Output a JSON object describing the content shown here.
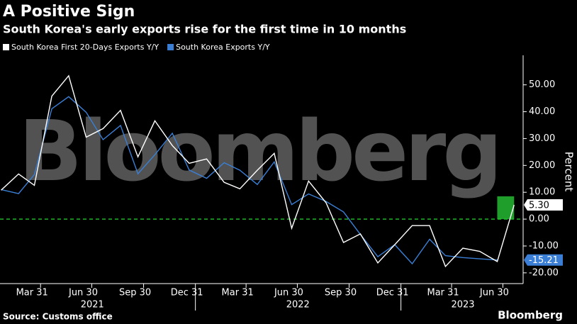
{
  "chart_data": {
    "type": "line",
    "title": "A Positive Sign",
    "subtitle": "South Korea's early exports rise for the first time in 10 months",
    "watermark": "Bloomberg",
    "y_label": "Percent",
    "source": "Source: Customs office",
    "brand": "Bloomberg",
    "x": [
      "2021-01",
      "2021-02",
      "2021-03",
      "2021-04",
      "2021-05",
      "2021-06",
      "2021-07",
      "2021-08",
      "2021-09",
      "2021-10",
      "2021-11",
      "2021-12",
      "2022-01",
      "2022-02",
      "2022-03",
      "2022-04",
      "2022-05",
      "2022-06",
      "2022-07",
      "2022-08",
      "2022-09",
      "2022-10",
      "2022-11",
      "2022-12",
      "2023-01",
      "2023-02",
      "2023-03",
      "2023-04",
      "2023-05",
      "2023-06",
      "2023-07"
    ],
    "series": [
      {
        "name": "South Korea First 20-Days Exports Y/Y",
        "color": "#ffffff",
        "values": [
          10.8,
          16.8,
          12.6,
          45.8,
          53.4,
          30.5,
          33.7,
          40.5,
          23.2,
          36.6,
          27.4,
          20.8,
          22.4,
          13.7,
          11.3,
          18.2,
          24.5,
          -3.4,
          14.2,
          6.1,
          -8.7,
          -5.5,
          -16.3,
          -9.5,
          -2.4,
          -2.4,
          -17.6,
          -10.8,
          -12.0,
          -15.8,
          5.3
        ],
        "value_labels": [
          null,
          null,
          null,
          null,
          null,
          null,
          null,
          null,
          null,
          null,
          null,
          null,
          null,
          null,
          null,
          null,
          null,
          null,
          null,
          null,
          null,
          null,
          null,
          null,
          null,
          null,
          null,
          null,
          null,
          null,
          "5.30"
        ]
      },
      {
        "name": "South Korea Exports Y/Y",
        "color": "#3a7fd5",
        "values": [
          11.0,
          9.5,
          16.6,
          41.1,
          45.6,
          39.8,
          29.6,
          34.9,
          16.9,
          24.0,
          32.0,
          18.3,
          15.2,
          21.0,
          18.2,
          12.9,
          21.3,
          5.4,
          9.4,
          6.6,
          2.7,
          -5.7,
          -14.0,
          -9.5,
          -16.6,
          -7.5,
          -13.6,
          -14.3,
          -14.8,
          -15.21,
          null
        ],
        "value_labels": [
          null,
          null,
          null,
          null,
          null,
          null,
          null,
          null,
          null,
          null,
          null,
          null,
          null,
          null,
          null,
          null,
          null,
          null,
          null,
          null,
          null,
          null,
          null,
          null,
          null,
          null,
          null,
          null,
          null,
          "-15.21",
          null
        ]
      }
    ],
    "xlim": [
      "2021-01-18",
      "2023-08-05"
    ],
    "xticks": [
      {
        "value": "2021-03-31",
        "label": "Mar 31"
      },
      {
        "value": "2021-06-30",
        "label": "Jun 30"
      },
      {
        "value": "2021-09-30",
        "label": "Sep 30"
      },
      {
        "value": "2021-12-31",
        "label": "Dec 31"
      },
      {
        "value": "2022-03-31",
        "label": "Mar 31"
      },
      {
        "value": "2022-06-30",
        "label": "Jun 30"
      },
      {
        "value": "2022-09-30",
        "label": "Sep 30"
      },
      {
        "value": "2022-12-31",
        "label": "Dec 31"
      },
      {
        "value": "2023-03-31",
        "label": "Mar 31"
      },
      {
        "value": "2023-06-30",
        "label": "Jun 30"
      }
    ],
    "x_group_labels": [
      {
        "value": "2021-07-01",
        "label": "2021"
      },
      {
        "value": "2022-07-01",
        "label": "2022"
      },
      {
        "value": "2023-04-20",
        "label": "2023"
      }
    ],
    "ylim": [
      -24,
      61
    ],
    "yticks": [
      {
        "value": 50,
        "label": "50.00"
      },
      {
        "value": 40,
        "label": "40.00"
      },
      {
        "value": 30,
        "label": "30.00"
      },
      {
        "value": 20,
        "label": "20.00"
      },
      {
        "value": 10,
        "label": "10.00"
      },
      {
        "value": 0,
        "label": "0.00"
      },
      {
        "value": -10,
        "label": "-10.00"
      },
      {
        "value": -20,
        "label": "-20.00"
      }
    ],
    "reference_line": {
      "value": 0,
      "color": "#22c62a"
    },
    "highlight": {
      "from": 0,
      "to": 8.5,
      "color": "#1f9e2c"
    },
    "grid": false
  }
}
